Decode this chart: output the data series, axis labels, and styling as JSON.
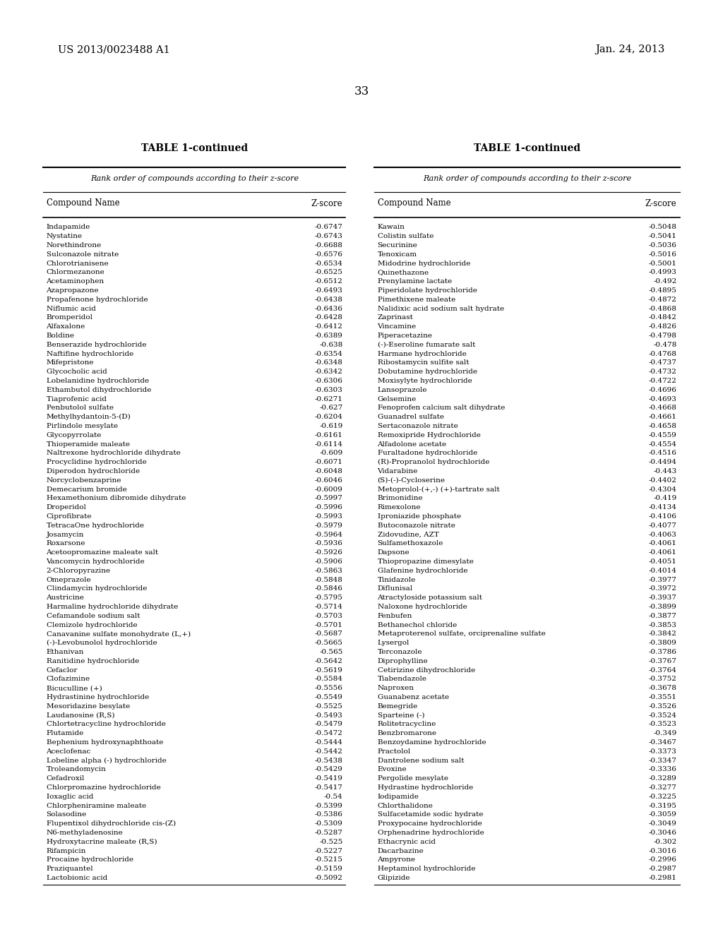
{
  "header_left": "US 2013/0023488 A1",
  "header_right": "Jan. 24, 2013",
  "page_number": "33",
  "table_title": "TABLE 1-continued",
  "subtitle": "Rank order of compounds according to their z-score",
  "col1_header": "Compound Name",
  "col2_header": "Z-score",
  "left_data": [
    [
      "Indapamide",
      "-0.6747"
    ],
    [
      "Nystatine",
      "-0.6743"
    ],
    [
      "Norethindrone",
      "-0.6688"
    ],
    [
      "Sulconazole nitrate",
      "-0.6576"
    ],
    [
      "Chlorotrianisene",
      "-0.6534"
    ],
    [
      "Chlormezanone",
      "-0.6525"
    ],
    [
      "Acetaminophen",
      "-0.6512"
    ],
    [
      "Azapropazone",
      "-0.6493"
    ],
    [
      "Propafenone hydrochloride",
      "-0.6438"
    ],
    [
      "Niflumic acid",
      "-0.6436"
    ],
    [
      "Bromperidol",
      "-0.6428"
    ],
    [
      "Alfaxalone",
      "-0.6412"
    ],
    [
      "Boldine",
      "-0.6389"
    ],
    [
      "Benserazide hydrochloride",
      "-0.638"
    ],
    [
      "Naftifine hydrochloride",
      "-0.6354"
    ],
    [
      "Mifepristone",
      "-0.6348"
    ],
    [
      "Glycocholic acid",
      "-0.6342"
    ],
    [
      "Lobelanidine hydrochloride",
      "-0.6306"
    ],
    [
      "Ethambutol dihydrochloride",
      "-0.6303"
    ],
    [
      "Tiaprofenic acid",
      "-0.6271"
    ],
    [
      "Penbutolol sulfate",
      "-0.627"
    ],
    [
      "Methylhydantoin-5-(D)",
      "-0.6204"
    ],
    [
      "Pirlindole mesylate",
      "-0.619"
    ],
    [
      "Glycopyrrolate",
      "-0.6161"
    ],
    [
      "Thioperamide maleate",
      "-0.6114"
    ],
    [
      "Naltrexone hydrochloride dihydrate",
      "-0.609"
    ],
    [
      "Procyclidine hydrochloride",
      "-0.6071"
    ],
    [
      "Diperodon hydrochloride",
      "-0.6048"
    ],
    [
      "Norcyclobenzaprine",
      "-0.6046"
    ],
    [
      "Demecarium bromide",
      "-0.6009"
    ],
    [
      "Hexamethonium dibromide dihydrate",
      "-0.5997"
    ],
    [
      "Droperidol",
      "-0.5996"
    ],
    [
      "Ciprofibrate",
      "-0.5993"
    ],
    [
      "TetracaOne hydrochloride",
      "-0.5979"
    ],
    [
      "Josamycin",
      "-0.5964"
    ],
    [
      "Roxarsone",
      "-0.5936"
    ],
    [
      "Acetoopromazine maleate salt",
      "-0.5926"
    ],
    [
      "Vancomycin hydrochloride",
      "-0.5906"
    ],
    [
      "2-Chloropyrazine",
      "-0.5863"
    ],
    [
      "Omeprazole",
      "-0.5848"
    ],
    [
      "Clindamycin hydrochloride",
      "-0.5846"
    ],
    [
      "Austricine",
      "-0.5795"
    ],
    [
      "Harmaline hydrochloride dihydrate",
      "-0.5714"
    ],
    [
      "Cefamandole sodium salt",
      "-0.5703"
    ],
    [
      "Clemizole hydrochloride",
      "-0.5701"
    ],
    [
      "Canavanine sulfate monohydrate (L,+)",
      "-0.5687"
    ],
    [
      "(-)-Levobunolol hydrochloride",
      "-0.5665"
    ],
    [
      "Ethanivan",
      "-0.565"
    ],
    [
      "Ranitidine hydrochloride",
      "-0.5642"
    ],
    [
      "Cefaclor",
      "-0.5619"
    ],
    [
      "Clofazimine",
      "-0.5584"
    ],
    [
      "Bicuculline (+)",
      "-0.5556"
    ],
    [
      "Hydrastinine hydrochloride",
      "-0.5549"
    ],
    [
      "Mesoridazine besylate",
      "-0.5525"
    ],
    [
      "Laudanosine (R,S)",
      "-0.5493"
    ],
    [
      "Chlortetracycline hydrochloride",
      "-0.5479"
    ],
    [
      "Flutamide",
      "-0.5472"
    ],
    [
      "Bephenium hydroxynaphthoate",
      "-0.5444"
    ],
    [
      "Aceclofenac",
      "-0.5442"
    ],
    [
      "Lobeline alpha (-) hydrochloride",
      "-0.5438"
    ],
    [
      "Troleandomycin",
      "-0.5429"
    ],
    [
      "Cefadroxil",
      "-0.5419"
    ],
    [
      "Chlorpromazine hydrochloride",
      "-0.5417"
    ],
    [
      "Ioxaglic acid",
      "-0.54"
    ],
    [
      "Chlorpheniramine maleate",
      "-0.5399"
    ],
    [
      "Solasodine",
      "-0.5386"
    ],
    [
      "Flupentixol dihydrochloride cis-(Z)",
      "-0.5309"
    ],
    [
      "N6-methyladenosine",
      "-0.5287"
    ],
    [
      "Hydroxytacrine maleate (R,S)",
      "-0.525"
    ],
    [
      "Rifampicin",
      "-0.5227"
    ],
    [
      "Procaine hydrochloride",
      "-0.5215"
    ],
    [
      "Praziquantel",
      "-0.5159"
    ],
    [
      "Lactobionic acid",
      "-0.5092"
    ]
  ],
  "right_data": [
    [
      "Kawain",
      "-0.5048"
    ],
    [
      "Colistin sulfate",
      "-0.5041"
    ],
    [
      "Securinine",
      "-0.5036"
    ],
    [
      "Tenoxicam",
      "-0.5016"
    ],
    [
      "Midodrine hydrochloride",
      "-0.5001"
    ],
    [
      "Quinethazone",
      "-0.4993"
    ],
    [
      "Prenylamine lactate",
      "-0.492"
    ],
    [
      "Piperidolate hydrochloride",
      "-0.4895"
    ],
    [
      "Pimethixene maleate",
      "-0.4872"
    ],
    [
      "Nalidixic acid sodium salt hydrate",
      "-0.4868"
    ],
    [
      "Zaprinast",
      "-0.4842"
    ],
    [
      "Vincamine",
      "-0.4826"
    ],
    [
      "Piperacetazine",
      "-0.4798"
    ],
    [
      "(-)-Eseroline fumarate salt",
      "-0.478"
    ],
    [
      "Harmane hydrochloride",
      "-0.4768"
    ],
    [
      "Ribostamycin sulfite salt",
      "-0.4737"
    ],
    [
      "Dobutamine hydrochloride",
      "-0.4732"
    ],
    [
      "Moxisylyte hydrochloride",
      "-0.4722"
    ],
    [
      "Lansoprazole",
      "-0.4696"
    ],
    [
      "Gelsemine",
      "-0.4693"
    ],
    [
      "Fenoprofen calcium salt dihydrate",
      "-0.4668"
    ],
    [
      "Guanadrel sulfate",
      "-0.4661"
    ],
    [
      "Sertaconazole nitrate",
      "-0.4658"
    ],
    [
      "Remoxipride Hydrochloride",
      "-0.4559"
    ],
    [
      "Alfadolone acetate",
      "-0.4554"
    ],
    [
      "Furaltadone hydrochloride",
      "-0.4516"
    ],
    [
      "(R)-Propranolol hydrochloride",
      "-0.4494"
    ],
    [
      "Vidarabine",
      "-0.443"
    ],
    [
      "(S)-(-)-Cycloserine",
      "-0.4402"
    ],
    [
      "Metoprolol-(+,-) (+)-tartrate salt",
      "-0.4304"
    ],
    [
      "Brimonidine",
      "-0.419"
    ],
    [
      "Rimexolone",
      "-0.4134"
    ],
    [
      "Iproniazide phosphate",
      "-0.4106"
    ],
    [
      "Butoconazole nitrate",
      "-0.4077"
    ],
    [
      "Zidovudine, AZT",
      "-0.4063"
    ],
    [
      "Sulfamethoxazole",
      "-0.4061"
    ],
    [
      "Dapsone",
      "-0.4061"
    ],
    [
      "Thiopropazine dimesylate",
      "-0.4051"
    ],
    [
      "Glafenine hydrochloride",
      "-0.4014"
    ],
    [
      "Tinidazole",
      "-0.3977"
    ],
    [
      "Diflunisal",
      "-0.3972"
    ],
    [
      "Atractyloside potassium salt",
      "-0.3937"
    ],
    [
      "Naloxone hydrochloride",
      "-0.3899"
    ],
    [
      "Fenbufen",
      "-0.3877"
    ],
    [
      "Bethanechol chloride",
      "-0.3853"
    ],
    [
      "Metaproterenol sulfate, orciprenaline sulfate",
      "-0.3842"
    ],
    [
      "Lysergol",
      "-0.3809"
    ],
    [
      "Terconazole",
      "-0.3786"
    ],
    [
      "Diprophylline",
      "-0.3767"
    ],
    [
      "Cetirizine dihydrochloride",
      "-0.3764"
    ],
    [
      "Tiabendazole",
      "-0.3752"
    ],
    [
      "Naproxen",
      "-0.3678"
    ],
    [
      "Guanabenz acetate",
      "-0.3551"
    ],
    [
      "Bemegride",
      "-0.3526"
    ],
    [
      "Sparteine (-)",
      "-0.3524"
    ],
    [
      "Rolitetracycline",
      "-0.3523"
    ],
    [
      "Benzbromarone",
      "-0.349"
    ],
    [
      "Benzoydamine hydrochloride",
      "-0.3467"
    ],
    [
      "Practolol",
      "-0.3373"
    ],
    [
      "Dantrolene sodium salt",
      "-0.3347"
    ],
    [
      "Evoxine",
      "-0.3336"
    ],
    [
      "Pergolide mesylate",
      "-0.3289"
    ],
    [
      "Hydrastine hydrochloride",
      "-0.3277"
    ],
    [
      "Iodipamide",
      "-0.3225"
    ],
    [
      "Chlorthalidone",
      "-0.3195"
    ],
    [
      "Sulfacetamide sodic hydrate",
      "-0.3059"
    ],
    [
      "Proxypocaine hydrochloride",
      "-0.3049"
    ],
    [
      "Orphenadrine hydrochloride",
      "-0.3046"
    ],
    [
      "Ethacrynic acid",
      "-0.302"
    ],
    [
      "Dacarbazine",
      "-0.3016"
    ],
    [
      "Ampyrone",
      "-0.2996"
    ],
    [
      "Heptaminol hydrochloride",
      "-0.2987"
    ],
    [
      "Glipizide",
      "-0.2981"
    ]
  ]
}
